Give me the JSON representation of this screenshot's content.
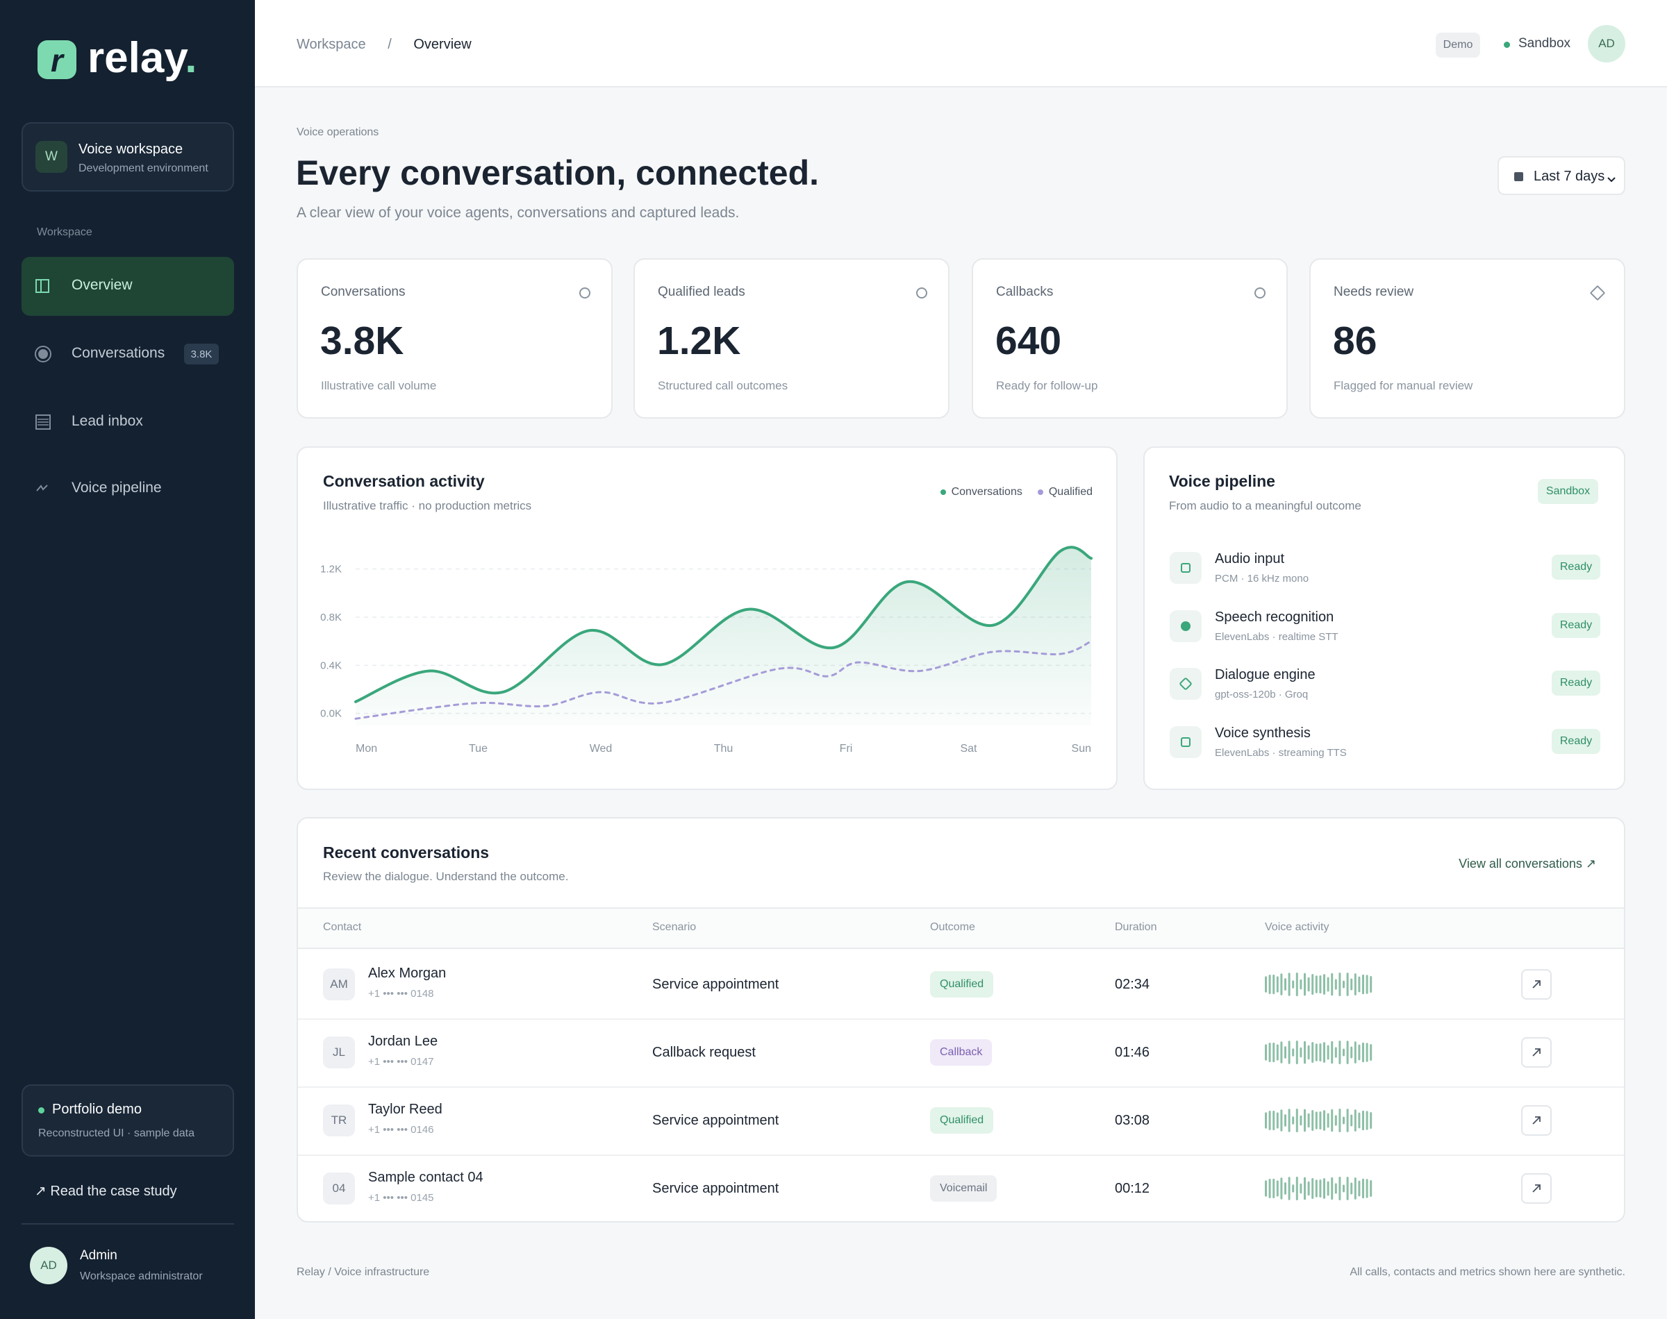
{
  "sidebar": {
    "logo_letter": "r",
    "brand": "relay",
    "brand_dot": ".",
    "workspace": {
      "initial": "W",
      "name": "Voice workspace",
      "env": "Development environment"
    },
    "section_label": "Workspace",
    "nav": [
      {
        "label": "Overview"
      },
      {
        "label": "Conversations",
        "badge": "3.8K"
      },
      {
        "label": "Lead inbox"
      },
      {
        "label": "Voice pipeline"
      }
    ],
    "demo_card": {
      "title": "Portfolio demo",
      "subtitle": "Reconstructed UI · sample data"
    },
    "case_study": "↗ Read the case study",
    "user": {
      "initials": "AD",
      "name": "Admin",
      "role": "Workspace administrator"
    }
  },
  "topbar": {
    "breadcrumb": [
      "Workspace",
      "/",
      "Overview"
    ],
    "demo_badge": "Demo",
    "env": "Sandbox",
    "avatar": "AD"
  },
  "header": {
    "eyebrow": "Voice operations",
    "title": "Every conversation, connected.",
    "subtitle": "A clear view of your voice agents, conversations and captured leads.",
    "range": "Last 7 days"
  },
  "kpis": [
    {
      "label": "Conversations",
      "value": "3.8K",
      "note": "Illustrative call volume"
    },
    {
      "label": "Qualified leads",
      "value": "1.2K",
      "note": "Structured call outcomes"
    },
    {
      "label": "Callbacks",
      "value": "640",
      "note": "Ready for follow-up"
    },
    {
      "label": "Needs review",
      "value": "86",
      "note": "Flagged for manual review"
    }
  ],
  "activity_chart": {
    "type": "line",
    "title": "Conversation activity",
    "subtitle": "Illustrative traffic · no production metrics",
    "series": [
      {
        "name": "Conversations",
        "color": "#3aa77c",
        "dashed": false,
        "area": true,
        "x": [
          0,
          0.6,
          1.2,
          1.9,
          2.5,
          3.2,
          3.9,
          4.5,
          5.2,
          5.75,
          6
        ],
        "values": [
          97,
          353,
          177,
          688,
          406,
          865,
          547,
          1094,
          733,
          1350,
          1289
        ]
      },
      {
        "name": "Qualified",
        "color": "#a59bd8",
        "dashed": true,
        "area": false,
        "x": [
          0,
          0.6,
          1.05,
          1.55,
          2.0,
          2.5,
          3.45,
          3.85,
          4.1,
          4.6,
          5.2,
          5.75,
          6
        ],
        "values": [
          -44,
          44,
          88,
          62,
          177,
          88,
          371,
          309,
          424,
          353,
          512,
          494,
          600
        ]
      }
    ],
    "xlim": [
      0,
      6
    ],
    "xticks": [
      {
        "value": 0,
        "label": "Mon"
      },
      {
        "value": 1,
        "label": "Tue"
      },
      {
        "value": 2,
        "label": "Wed"
      },
      {
        "value": 3,
        "label": "Thu"
      },
      {
        "value": 4,
        "label": "Fri"
      },
      {
        "value": 5,
        "label": "Sat"
      },
      {
        "value": 6,
        "label": "Sun"
      }
    ],
    "ylim": [
      -100,
      1400
    ],
    "yticks": [
      {
        "value": 0,
        "label": "0.0K"
      },
      {
        "value": 400,
        "label": "0.4K"
      },
      {
        "value": 800,
        "label": "0.8K"
      },
      {
        "value": 1200,
        "label": "1.2K"
      }
    ],
    "grid": true
  },
  "pipeline": {
    "title": "Voice pipeline",
    "subtitle": "From audio to a meaningful outcome",
    "badge": "Sandbox",
    "stages": [
      {
        "name": "Audio input",
        "detail": "PCM · 16 kHz mono",
        "status": "Ready"
      },
      {
        "name": "Speech recognition",
        "detail": "ElevenLabs · realtime STT",
        "status": "Ready"
      },
      {
        "name": "Dialogue engine",
        "detail": "gpt-oss-120b · Groq",
        "status": "Ready"
      },
      {
        "name": "Voice synthesis",
        "detail": "ElevenLabs · streaming TTS",
        "status": "Ready"
      }
    ]
  },
  "recent": {
    "title": "Recent conversations",
    "subtitle": "Review the dialogue. Understand the outcome.",
    "link": "View all conversations ↗",
    "columns": [
      "Contact",
      "Scenario",
      "Outcome",
      "Duration",
      "Voice activity"
    ],
    "rows": [
      {
        "initials": "AM",
        "name": "Alex Morgan",
        "phone": "+1 ••• ••• 0148",
        "scenario": "Service appointment",
        "outcome": "Qualified",
        "outcome_color": "#2f8f66",
        "outcome_bg": "#e3f4ea",
        "duration": "02:34"
      },
      {
        "initials": "JL",
        "name": "Jordan Lee",
        "phone": "+1 ••• ••• 0147",
        "scenario": "Callback request",
        "outcome": "Callback",
        "outcome_color": "#7b5fb0",
        "outcome_bg": "#efe9f8",
        "duration": "01:46"
      },
      {
        "initials": "TR",
        "name": "Taylor Reed",
        "phone": "+1 ••• ••• 0146",
        "scenario": "Service appointment",
        "outcome": "Qualified",
        "outcome_color": "#2f8f66",
        "outcome_bg": "#e3f4ea",
        "duration": "03:08"
      },
      {
        "initials": "04",
        "name": "Sample contact 04",
        "phone": "+1 ••• ••• 0145",
        "scenario": "Service appointment",
        "outcome": "Voicemail",
        "outcome_color": "#6b7280",
        "outcome_bg": "#eef0f2",
        "duration": "00:12"
      }
    ]
  },
  "footer": {
    "left": "Relay / Voice infrastructure",
    "right": "All calls, contacts and metrics shown here are synthetic."
  }
}
